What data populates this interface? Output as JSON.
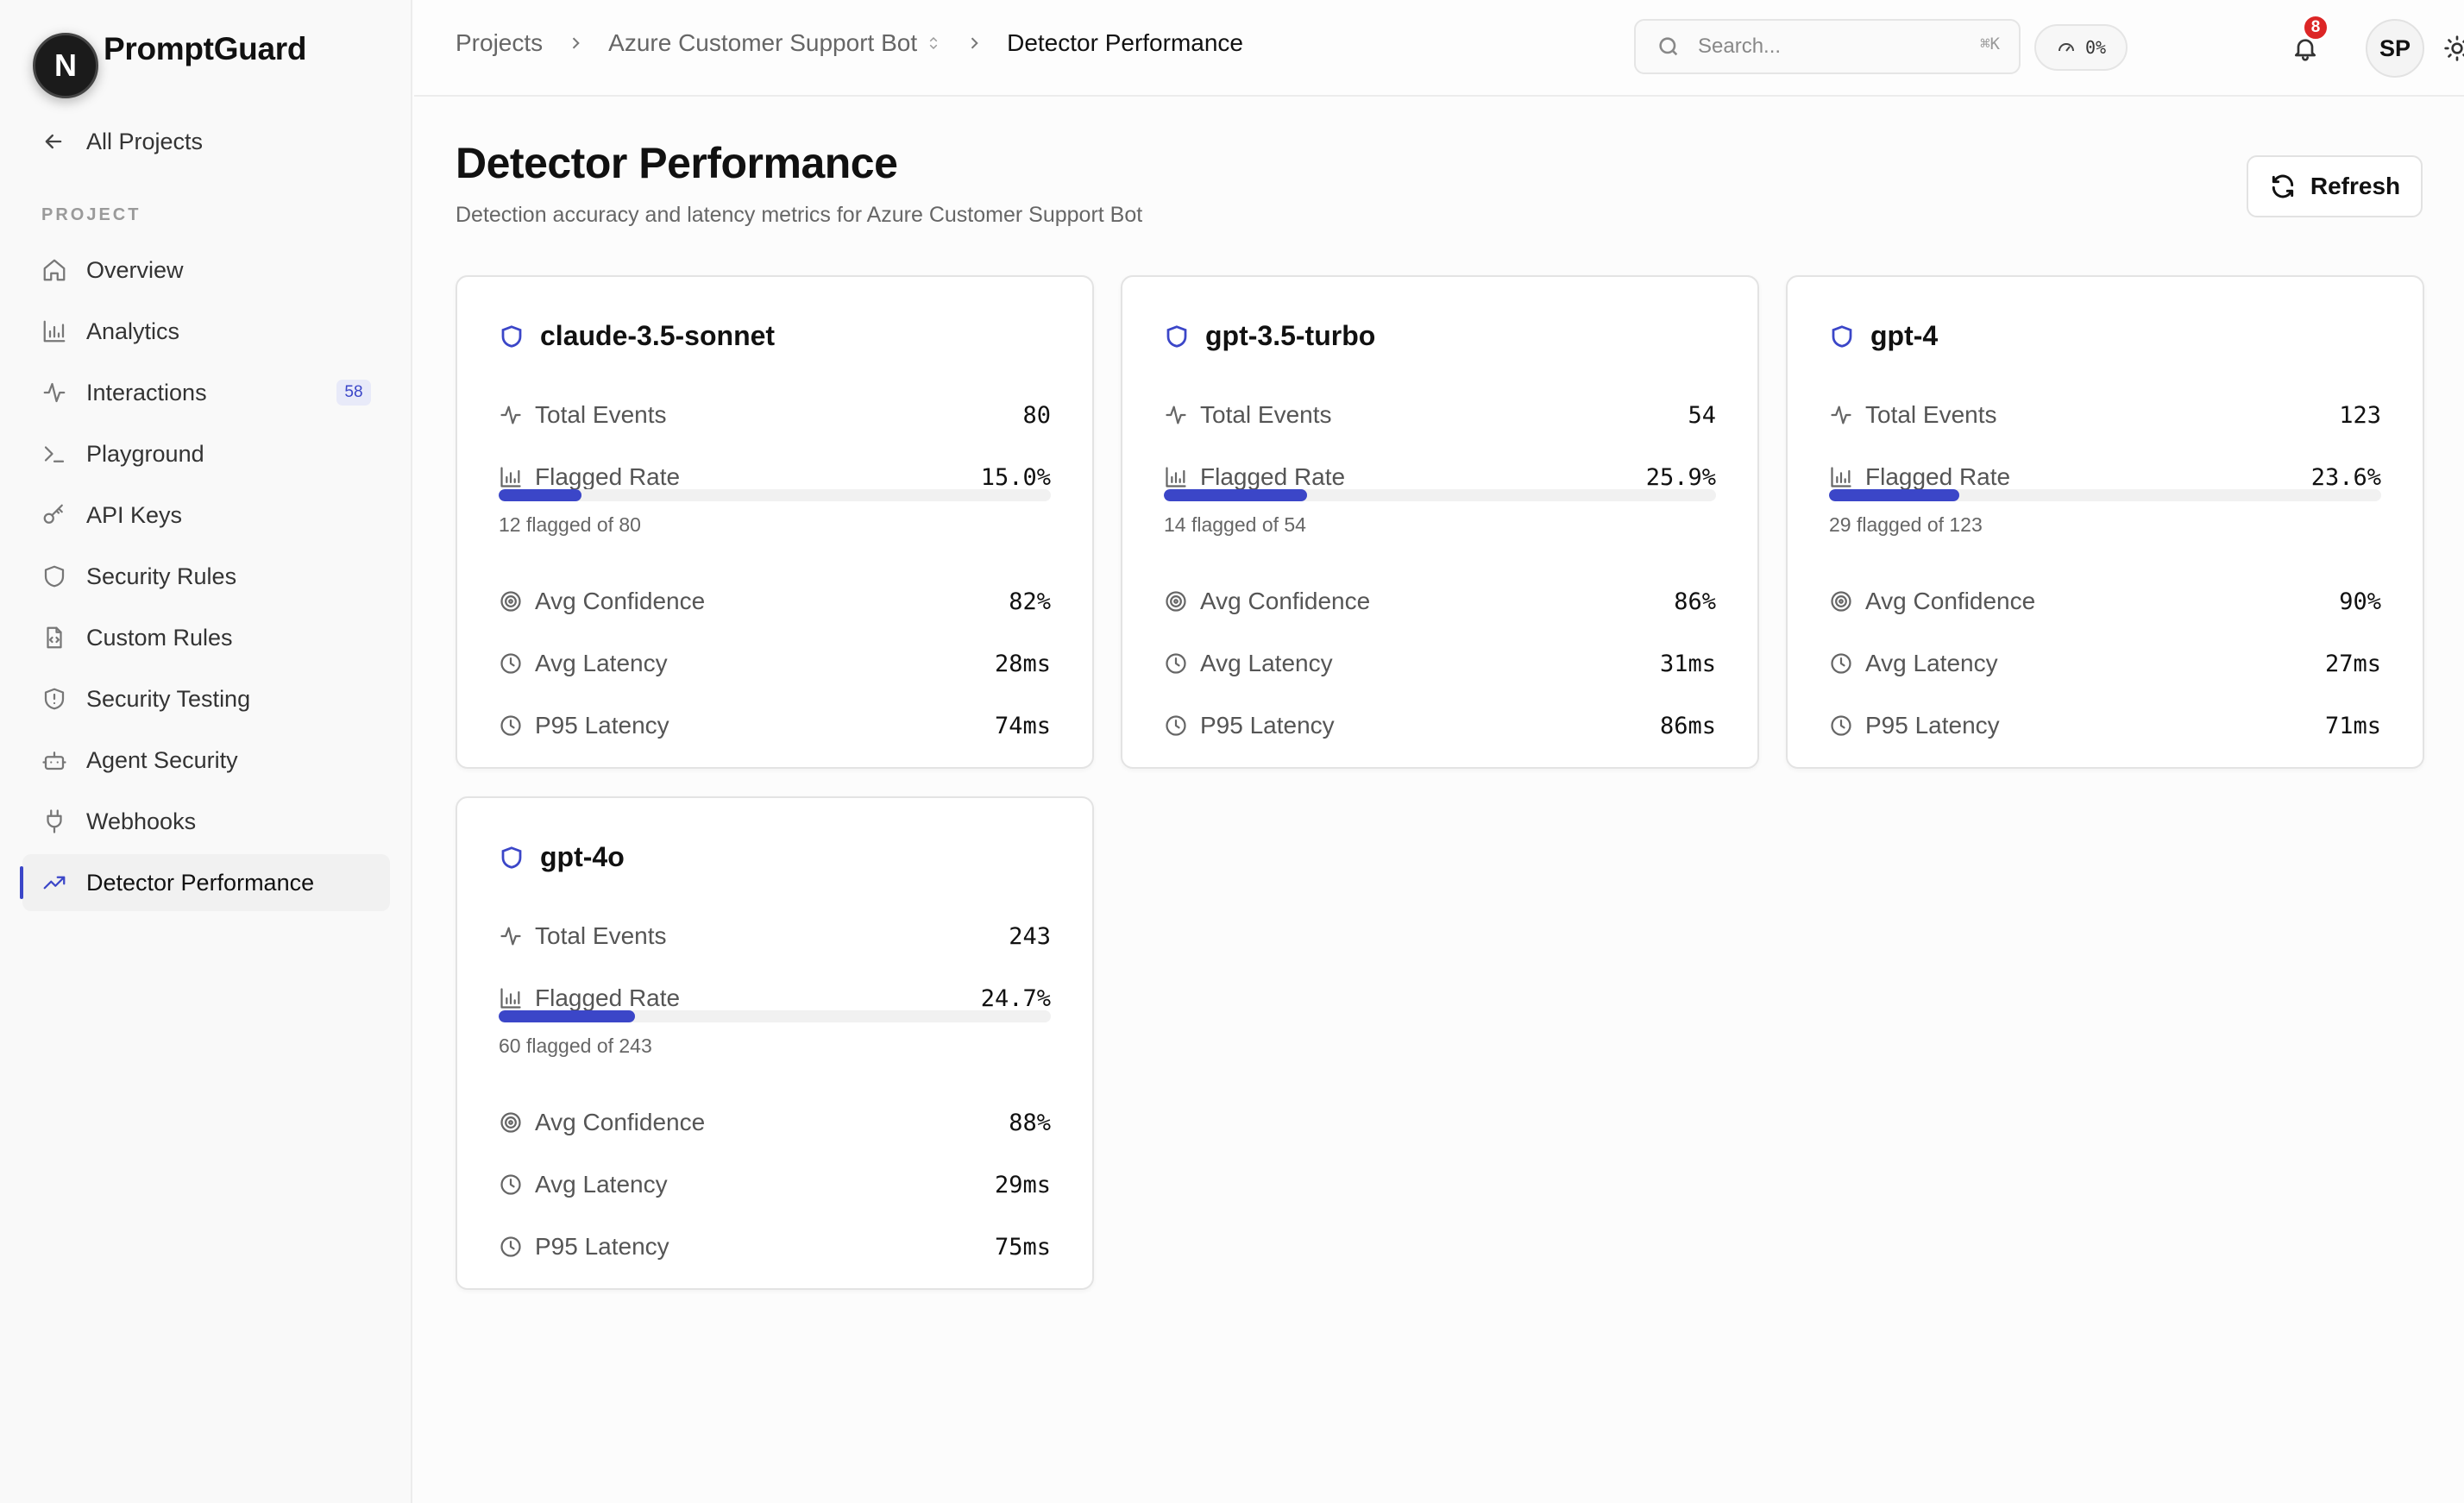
{
  "brand": {
    "logo_letter": "N",
    "name": "PromptGuard"
  },
  "sidebar": {
    "back_label": "All Projects",
    "section_label": "PROJECT",
    "items": [
      {
        "label": "Overview",
        "icon": "home-icon"
      },
      {
        "label": "Analytics",
        "icon": "bar-chart-icon"
      },
      {
        "label": "Interactions",
        "icon": "activity-icon",
        "badge": "58"
      },
      {
        "label": "Playground",
        "icon": "terminal-icon"
      },
      {
        "label": "API Keys",
        "icon": "key-icon"
      },
      {
        "label": "Security Rules",
        "icon": "shield-icon"
      },
      {
        "label": "Custom Rules",
        "icon": "file-code-icon"
      },
      {
        "label": "Security Testing",
        "icon": "shield-alert-icon"
      },
      {
        "label": "Agent Security",
        "icon": "bot-icon"
      },
      {
        "label": "Webhooks",
        "icon": "plug-icon"
      },
      {
        "label": "Detector Performance",
        "icon": "trending-up-icon",
        "active": true
      }
    ]
  },
  "header": {
    "breadcrumb": [
      "Projects",
      "Azure Customer Support Bot",
      "Detector Performance"
    ],
    "search_placeholder": "Search...",
    "search_shortcut": "⌘K",
    "usage": "0%",
    "notification_count": "8",
    "avatar_initials": "SP"
  },
  "page": {
    "title": "Detector Performance",
    "subtitle": "Detection accuracy and latency metrics for Azure Customer Support Bot",
    "refresh_label": "Refresh"
  },
  "metric_labels": {
    "total_events": "Total Events",
    "flagged_rate": "Flagged Rate",
    "avg_confidence": "Avg Confidence",
    "avg_latency": "Avg Latency",
    "p95_latency": "P95 Latency"
  },
  "accent_color": "#3b46c8",
  "models": [
    {
      "name": "claude-3.5-sonnet",
      "total_events": "80",
      "flagged_rate": "15.0%",
      "flagged_fraction": 0.15,
      "flagged_sub": "12 flagged of 80",
      "avg_confidence": "82%",
      "avg_latency": "28ms",
      "p95_latency": "74ms"
    },
    {
      "name": "gpt-3.5-turbo",
      "total_events": "54",
      "flagged_rate": "25.9%",
      "flagged_fraction": 0.259,
      "flagged_sub": "14 flagged of 54",
      "avg_confidence": "86%",
      "avg_latency": "31ms",
      "p95_latency": "86ms"
    },
    {
      "name": "gpt-4",
      "total_events": "123",
      "flagged_rate": "23.6%",
      "flagged_fraction": 0.236,
      "flagged_sub": "29 flagged of 123",
      "avg_confidence": "90%",
      "avg_latency": "27ms",
      "p95_latency": "71ms"
    },
    {
      "name": "gpt-4o",
      "total_events": "243",
      "flagged_rate": "24.7%",
      "flagged_fraction": 0.247,
      "flagged_sub": "60 flagged of 243",
      "avg_confidence": "88%",
      "avg_latency": "29ms",
      "p95_latency": "75ms"
    }
  ]
}
